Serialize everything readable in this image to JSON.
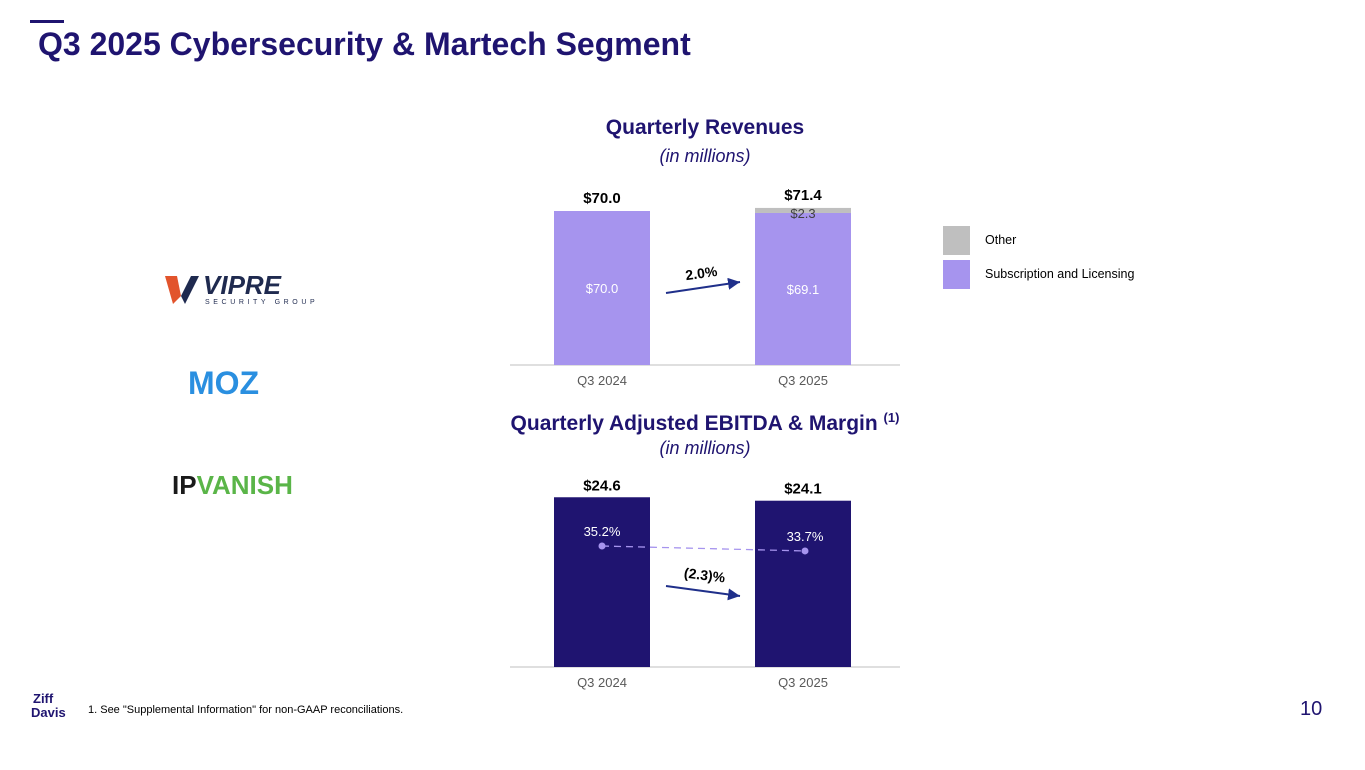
{
  "page": {
    "title": "Q3 2025 Cybersecurity & Martech Segment",
    "footnote": "1.  See \"Supplemental Information\" for non-GAAP reconciliations.",
    "page_number": "10",
    "logos": {
      "vipre_main": "VIPRE",
      "vipre_sub": "SECURITY GROUP",
      "moz": "MOZ",
      "ipvanish_ip": "IP",
      "ipvanish_vanish": "VANISH",
      "zd_top": "Ziff",
      "zd_bottom": "Davis"
    }
  },
  "colors": {
    "brand": "#1f1470",
    "subscription": "#a694ee",
    "other": "#bfbfbf",
    "ebitda": "#1f1470",
    "margin_line": "#a694ee",
    "arrow": "#1f2f8a"
  },
  "legend": [
    {
      "label": "Other",
      "color": "#bfbfbf"
    },
    {
      "label": "Subscription and Licensing",
      "color": "#a694ee"
    }
  ],
  "chart_data": [
    {
      "type": "bar",
      "stacked": true,
      "title": "Quarterly Revenues",
      "subtitle": "(in millions)",
      "categories": [
        "Q3 2024",
        "Q3 2025"
      ],
      "series": [
        {
          "name": "Subscription and Licensing",
          "values": [
            70.0,
            69.1
          ],
          "labels": [
            "$70.0",
            "$69.1"
          ]
        },
        {
          "name": "Other",
          "values": [
            0,
            2.3
          ],
          "labels": [
            "",
            "$2.3"
          ]
        }
      ],
      "totals": [
        70.0,
        71.4
      ],
      "total_labels": [
        "$70.0",
        "$71.4"
      ],
      "growth_label": "2.0%",
      "legend_position": "right",
      "grid": false
    },
    {
      "type": "bar",
      "title": "Quarterly Adjusted EBITDA & Margin",
      "title_superscript": "(1)",
      "subtitle": "(in millions)",
      "categories": [
        "Q3 2024",
        "Q3 2025"
      ],
      "values": [
        24.6,
        24.1
      ],
      "value_labels": [
        "$24.6",
        "$24.1"
      ],
      "margin": [
        35.2,
        33.7
      ],
      "margin_labels": [
        "35.2%",
        "33.7%"
      ],
      "change_label": "(2.3)%",
      "grid": false
    }
  ]
}
